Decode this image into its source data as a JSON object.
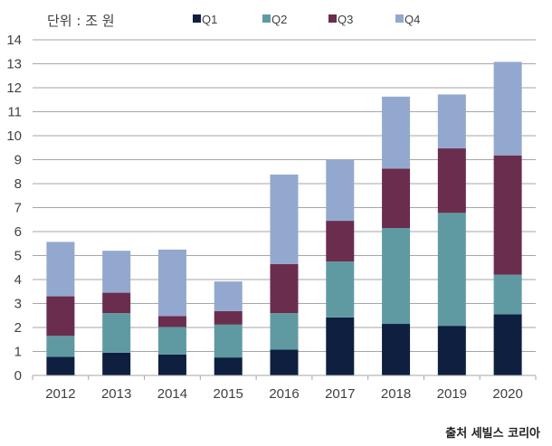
{
  "chart_data": {
    "type": "bar",
    "stacked": true,
    "unit_label": "단위 : 조 원",
    "source": "출처 세빌스 코리아",
    "categories": [
      "2012",
      "2013",
      "2014",
      "2015",
      "2016",
      "2017",
      "2018",
      "2019",
      "2020"
    ],
    "ylim": [
      0,
      14
    ],
    "yticks": [
      0,
      1,
      2,
      3,
      4,
      5,
      6,
      7,
      8,
      9,
      10,
      11,
      12,
      13,
      14
    ],
    "grid": true,
    "legend": "top",
    "series": [
      {
        "name": "Q1",
        "color": "#0e1f40",
        "values": [
          0.78,
          0.95,
          0.87,
          0.75,
          1.08,
          2.42,
          2.15,
          2.07,
          2.55
        ]
      },
      {
        "name": "Q2",
        "color": "#5f9aa3",
        "values": [
          0.87,
          1.65,
          1.15,
          1.37,
          1.52,
          2.33,
          4.0,
          4.71,
          1.65
        ]
      },
      {
        "name": "Q3",
        "color": "#6b2d4e",
        "values": [
          1.65,
          0.85,
          0.46,
          0.56,
          2.05,
          1.7,
          2.48,
          2.69,
          4.98
        ]
      },
      {
        "name": "Q4",
        "color": "#93a8cf",
        "values": [
          2.27,
          1.75,
          2.77,
          1.24,
          3.73,
          2.53,
          3.0,
          2.25,
          3.9
        ]
      }
    ]
  }
}
